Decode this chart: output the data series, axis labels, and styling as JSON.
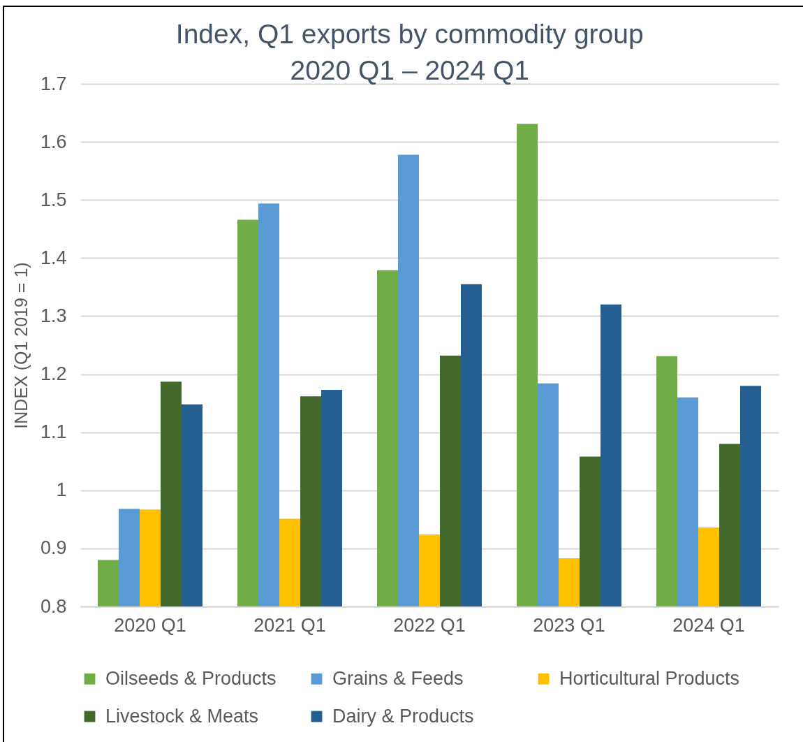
{
  "chart_data": {
    "type": "bar",
    "title": "Index, Q1 exports by commodity group",
    "subtitle": "2020 Q1 – 2024 Q1",
    "ylabel": "INDEX (Q1 2019 = 1)",
    "categories": [
      "2020 Q1",
      "2021 Q1",
      "2022 Q1",
      "2023 Q1",
      "2024 Q1"
    ],
    "series": [
      {
        "name": "Oilseeds & Products",
        "color": "#70ad47",
        "values": [
          0.88,
          1.466,
          1.379,
          1.631,
          1.231
        ]
      },
      {
        "name": "Grains & Feeds",
        "color": "#5b9bd5",
        "values": [
          0.968,
          1.494,
          1.578,
          1.184,
          1.16
        ]
      },
      {
        "name": "Horticultural Products",
        "color": "#ffc000",
        "values": [
          0.967,
          0.951,
          0.924,
          0.883,
          0.936
        ]
      },
      {
        "name": "Livestock & Meats",
        "color": "#43682b",
        "values": [
          1.187,
          1.162,
          1.232,
          1.058,
          1.08
        ]
      },
      {
        "name": "Dairy & Products",
        "color": "#255e91",
        "values": [
          1.148,
          1.173,
          1.355,
          1.32,
          1.18
        ]
      }
    ],
    "ylim": [
      0.8,
      1.7
    ],
    "yticks": [
      0.8,
      0.9,
      1,
      1.1,
      1.2,
      1.3,
      1.4,
      1.5,
      1.6,
      1.7
    ],
    "grid": "y",
    "legend": "bottom"
  }
}
